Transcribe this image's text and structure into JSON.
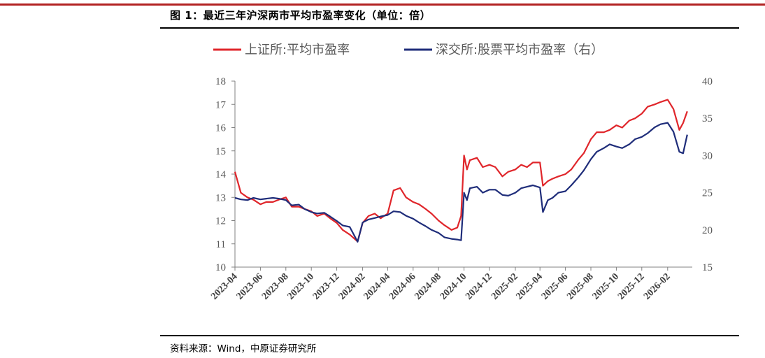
{
  "header": {
    "figure_title": "图 1：最近三年沪深两市平均市盈率变化（单位：倍）"
  },
  "footer": {
    "source": "资料来源：Wind，中原证券研究所"
  },
  "chart_data": {
    "type": "line",
    "title": "图 1：最近三年沪深两市平均市盈率变化（单位：倍）",
    "legend_position": "top",
    "x_tick_labels": [
      "2023-04",
      "2023-06",
      "2023-08",
      "2023-10",
      "2023-12",
      "2024-02",
      "2024-04",
      "2024-06",
      "2024-08",
      "2024-10",
      "2024-12",
      "2025-02",
      "2025-04",
      "2025-06",
      "2025-08",
      "2025-10",
      "2025-12",
      "2026-02"
    ],
    "x_range": [
      "2023-04",
      "2026-04"
    ],
    "y_left": {
      "min": 10,
      "max": 18,
      "ticks": [
        10,
        11,
        12,
        13,
        14,
        15,
        16,
        17,
        18
      ]
    },
    "y_right": {
      "min": 15,
      "max": 40,
      "ticks": [
        15,
        20,
        25,
        30,
        35,
        40
      ]
    },
    "grid": false,
    "series": [
      {
        "name": "上证所:平均市盈率",
        "axis": "left",
        "color": "#e0262b",
        "x": [
          "2023-04-01",
          "2023-04-15",
          "2023-05-01",
          "2023-05-15",
          "2023-06-01",
          "2023-06-15",
          "2023-07-01",
          "2023-07-15",
          "2023-08-01",
          "2023-08-15",
          "2023-09-01",
          "2023-09-15",
          "2023-10-01",
          "2023-10-15",
          "2023-11-01",
          "2023-11-15",
          "2023-12-01",
          "2023-12-15",
          "2024-01-01",
          "2024-01-20",
          "2024-02-01",
          "2024-02-15",
          "2024-03-01",
          "2024-03-15",
          "2024-04-01",
          "2024-04-15",
          "2024-05-01",
          "2024-05-15",
          "2024-06-01",
          "2024-06-15",
          "2024-07-01",
          "2024-07-15",
          "2024-08-01",
          "2024-08-15",
          "2024-09-01",
          "2024-09-15",
          "2024-09-24",
          "2024-10-01",
          "2024-10-08",
          "2024-10-15",
          "2024-11-01",
          "2024-11-15",
          "2024-12-01",
          "2024-12-15",
          "2025-01-01",
          "2025-01-15",
          "2025-02-01",
          "2025-02-15",
          "2025-03-01",
          "2025-03-15",
          "2025-04-01",
          "2025-04-08",
          "2025-04-20",
          "2025-05-01",
          "2025-05-15",
          "2025-06-01",
          "2025-06-15",
          "2025-07-01",
          "2025-07-15",
          "2025-08-01",
          "2025-08-15",
          "2025-09-01",
          "2025-09-15",
          "2025-10-01",
          "2025-10-15",
          "2025-11-01",
          "2025-11-15",
          "2025-12-01",
          "2025-12-15",
          "2026-01-01",
          "2026-01-15",
          "2026-02-01",
          "2026-02-15",
          "2026-03-01",
          "2026-03-10",
          "2026-03-20"
        ],
        "values": [
          14.1,
          13.2,
          13.0,
          12.9,
          12.7,
          12.8,
          12.8,
          12.9,
          13.0,
          12.6,
          12.6,
          12.5,
          12.4,
          12.2,
          12.3,
          12.1,
          11.9,
          11.6,
          11.4,
          11.1,
          11.9,
          12.2,
          12.3,
          12.1,
          12.3,
          13.3,
          13.4,
          13.0,
          12.8,
          12.7,
          12.5,
          12.3,
          12.0,
          11.8,
          11.6,
          11.7,
          12.2,
          14.8,
          14.2,
          14.6,
          14.7,
          14.3,
          14.4,
          14.3,
          13.9,
          14.1,
          14.2,
          14.4,
          14.3,
          14.5,
          14.5,
          13.5,
          13.7,
          13.8,
          13.9,
          14.0,
          14.2,
          14.6,
          14.9,
          15.5,
          15.8,
          15.8,
          15.9,
          16.1,
          16.0,
          16.3,
          16.4,
          16.6,
          16.9,
          17.0,
          17.1,
          17.2,
          16.8,
          15.9,
          16.2,
          16.7
        ]
      },
      {
        "name": "深交所:股票平均市盈率（右）",
        "axis": "right",
        "color": "#1f2d7a",
        "x": [
          "2023-04-01",
          "2023-04-15",
          "2023-05-01",
          "2023-05-15",
          "2023-06-01",
          "2023-06-15",
          "2023-07-01",
          "2023-07-15",
          "2023-08-01",
          "2023-08-15",
          "2023-09-01",
          "2023-09-15",
          "2023-10-01",
          "2023-10-15",
          "2023-11-01",
          "2023-11-15",
          "2023-12-01",
          "2023-12-15",
          "2024-01-01",
          "2024-01-20",
          "2024-02-01",
          "2024-02-15",
          "2024-03-01",
          "2024-03-15",
          "2024-04-01",
          "2024-04-15",
          "2024-05-01",
          "2024-05-15",
          "2024-06-01",
          "2024-06-15",
          "2024-07-01",
          "2024-07-15",
          "2024-08-01",
          "2024-08-15",
          "2024-09-01",
          "2024-09-15",
          "2024-09-24",
          "2024-10-01",
          "2024-10-08",
          "2024-10-15",
          "2024-11-01",
          "2024-11-15",
          "2024-12-01",
          "2024-12-15",
          "2025-01-01",
          "2025-01-15",
          "2025-02-01",
          "2025-02-15",
          "2025-03-01",
          "2025-03-15",
          "2025-04-01",
          "2025-04-08",
          "2025-04-20",
          "2025-05-01",
          "2025-05-15",
          "2025-06-01",
          "2025-06-15",
          "2025-07-01",
          "2025-07-15",
          "2025-08-01",
          "2025-08-15",
          "2025-09-01",
          "2025-09-15",
          "2025-10-01",
          "2025-10-15",
          "2025-11-01",
          "2025-11-15",
          "2025-12-01",
          "2025-12-15",
          "2026-01-01",
          "2026-01-15",
          "2026-02-01",
          "2026-02-15",
          "2026-03-01",
          "2026-03-10",
          "2026-03-20"
        ],
        "values": [
          24.3,
          24.1,
          24.0,
          24.3,
          24.1,
          24.2,
          24.3,
          24.2,
          24.0,
          23.3,
          23.4,
          22.8,
          22.4,
          22.2,
          22.3,
          21.8,
          21.2,
          20.6,
          20.4,
          18.4,
          21.0,
          21.4,
          21.6,
          21.8,
          22.0,
          22.5,
          22.4,
          21.9,
          21.5,
          21.0,
          20.5,
          20.0,
          19.6,
          19.0,
          18.8,
          18.7,
          18.6,
          25.0,
          24.0,
          25.6,
          25.8,
          25.0,
          25.4,
          25.4,
          24.7,
          24.6,
          25.0,
          25.6,
          25.8,
          26.0,
          25.7,
          22.4,
          24.0,
          24.3,
          25.0,
          25.2,
          26.0,
          27.0,
          28.0,
          29.5,
          30.5,
          31.0,
          31.5,
          31.2,
          31.0,
          31.5,
          32.2,
          32.5,
          33.0,
          33.8,
          34.2,
          34.4,
          33.2,
          30.5,
          30.3,
          32.8
        ]
      }
    ]
  }
}
